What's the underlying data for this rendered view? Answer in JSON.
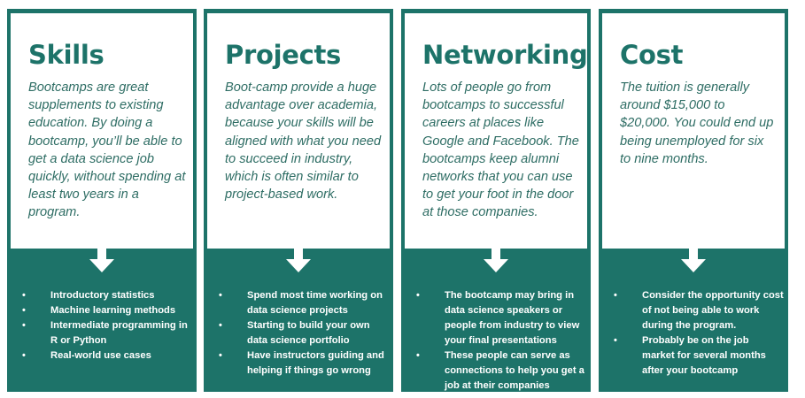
{
  "columns": [
    {
      "title": "Skills",
      "description": "Bootcamps are great supplements to existing education. By doing a bootcamp, you’ll be able to get a data science job quickly, without spending at least two years in a program.",
      "bullets": [
        "Introductory statistics",
        "Machine learning methods",
        "Intermediate programming in R or Python",
        "Real-world use cases"
      ]
    },
    {
      "title": "Projects",
      "description": "Boot-camp provide a huge advantage over academia, because your skills will be aligned with what you need to succeed in industry, which is often similar to project-based work.",
      "bullets": [
        "Spend most time working on data science projects",
        "Starting to build your own data science portfolio",
        "Have instructors guiding and helping if things go wrong"
      ]
    },
    {
      "title": "Networking",
      "description": "Lots of people go from bootcamps to successful careers at places like Google and Facebook. The bootcamps keep alumni networks that you can use to get your foot in the door at those companies.",
      "bullets": [
        "The bootcamp may bring in data science speakers or people from industry to view your final presentations",
        "These people can serve as connections to help you get a job at their companies"
      ]
    },
    {
      "title": "Cost",
      "description": "The tuition is generally around $15,000 to $20,000. You could end up being unemployed for six to nine months.",
      "bullets": [
        "Consider the opportunity cost of not being able to work during the program.",
        "Probably be on the job market for several months after your bootcamp"
      ]
    }
  ],
  "colors": {
    "accent": "#1d7369",
    "card_bg": "#ffffff",
    "bullet_text": "#ffffff",
    "description_text": "#2e6d64"
  },
  "icons": {
    "connector": "down-arrow-icon",
    "bullet": "bullet-dot-icon"
  }
}
